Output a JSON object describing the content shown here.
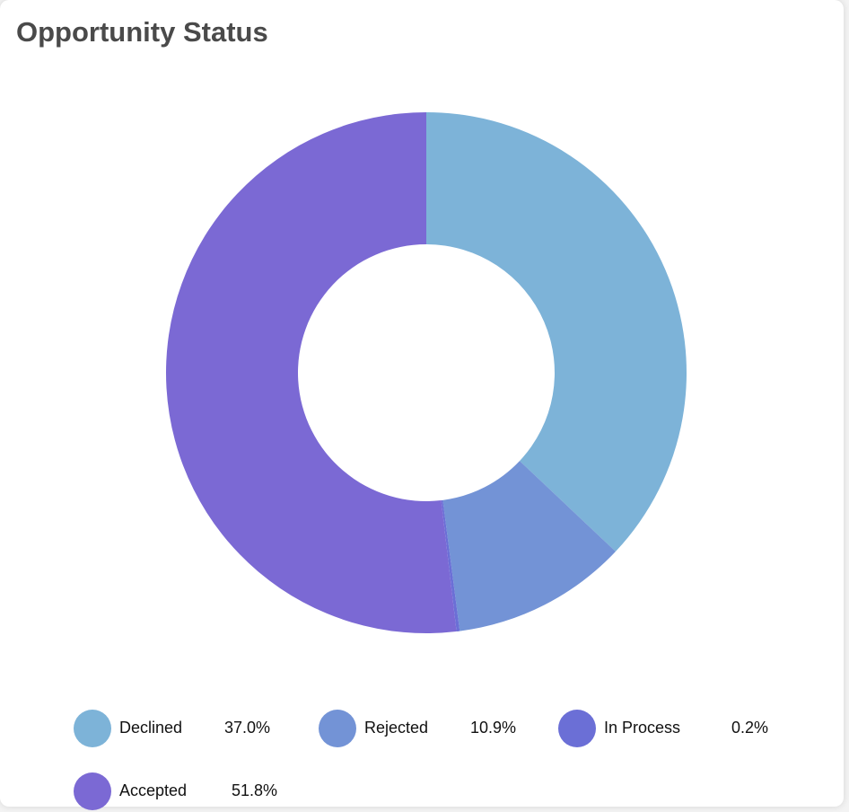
{
  "chart_data": {
    "type": "pie",
    "title": "Opportunity Status",
    "categories": [
      "Declined",
      "Rejected",
      "In Process",
      "Accepted"
    ],
    "values": [
      37.0,
      10.9,
      0.2,
      51.8
    ],
    "value_labels": [
      "37.0%",
      "10.9%",
      "0.2%",
      "51.8%"
    ],
    "colors": [
      "#7db3d8",
      "#7393d6",
      "#6b6fd6",
      "#7b69d4"
    ]
  }
}
